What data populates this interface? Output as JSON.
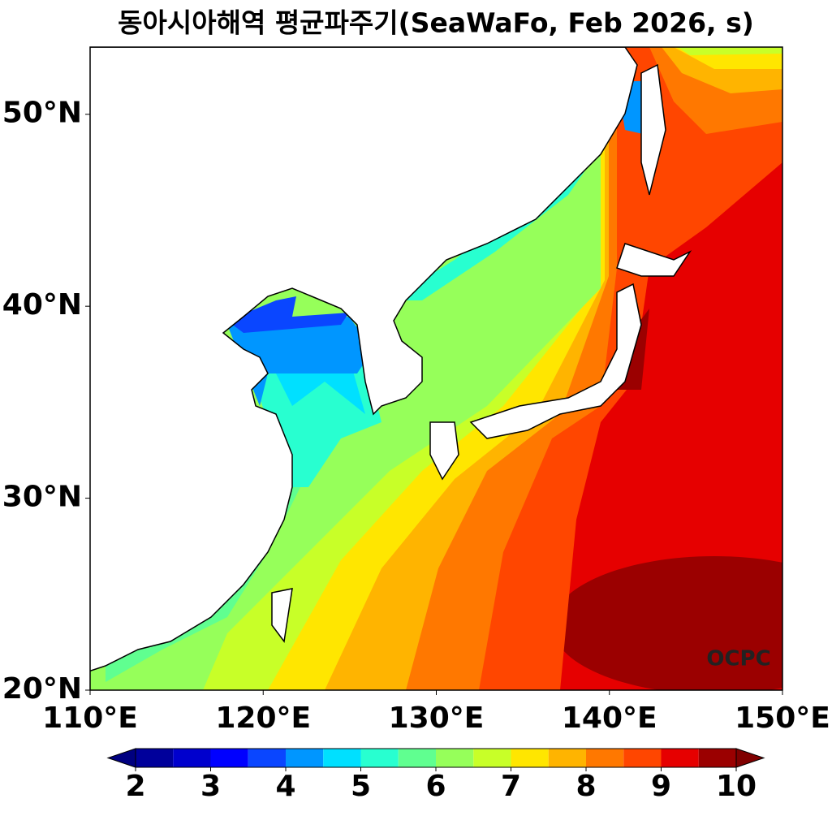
{
  "map": {
    "title": "동아시아해역 평균파주기(SeaWaFo, Feb 2026, s)",
    "xlim": [
      110,
      150
    ],
    "ylim": [
      20,
      53.5
    ],
    "xticks": [
      {
        "value": 110,
        "label": "110°E"
      },
      {
        "value": 120,
        "label": "120°E"
      },
      {
        "value": 130,
        "label": "130°E"
      },
      {
        "value": 140,
        "label": "140°E"
      },
      {
        "value": 150,
        "label": "150°E"
      }
    ],
    "yticks": [
      {
        "value": 20,
        "label": "20°N"
      },
      {
        "value": 30,
        "label": "30°N"
      },
      {
        "value": 40,
        "label": "40°N"
      },
      {
        "value": 50,
        "label": "50°N"
      }
    ],
    "annotation": "OCPC",
    "colorbar": {
      "levels": [
        2,
        2.5,
        3,
        3.5,
        4,
        4.5,
        5,
        5.5,
        6,
        6.5,
        7,
        7.5,
        8,
        8.5,
        9,
        9.5,
        10
      ],
      "colors": [
        "#00009b",
        "#0000cd",
        "#0000ff",
        "#0a46ff",
        "#0096ff",
        "#00e0ff",
        "#28ffd0",
        "#60ff90",
        "#96ff5a",
        "#c8ff28",
        "#ffe600",
        "#ffb400",
        "#ff7800",
        "#ff4600",
        "#e60000",
        "#9b0000"
      ],
      "extend_colors": [
        "#000080",
        "#800000"
      ],
      "ticks": [
        2,
        3,
        4,
        5,
        6,
        7,
        8,
        9,
        10
      ]
    }
  }
}
